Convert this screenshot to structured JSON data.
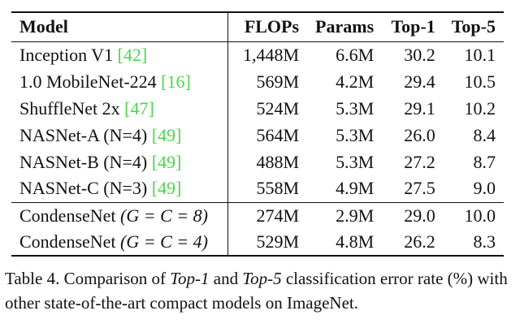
{
  "table": {
    "headers": {
      "model": "Model",
      "flops": "FLOPs",
      "params": "Params",
      "top1": "Top-1",
      "top5": "Top-5"
    },
    "rows": [
      {
        "name": "Inception V1",
        "ref": "[42]",
        "flops": "1,448M",
        "params": "6.6M",
        "top1": "30.2",
        "top5": "10.1"
      },
      {
        "name": "1.0 MobileNet-224",
        "ref": "[16]",
        "flops": "569M",
        "params": "4.2M",
        "top1": "29.4",
        "top5": "10.5"
      },
      {
        "name": "ShuffleNet 2x",
        "ref": "[47]",
        "flops": "524M",
        "params": "5.3M",
        "top1": "29.1",
        "top5": "10.2"
      },
      {
        "name": "NASNet-A (N=4)",
        "ref": "[49]",
        "flops": "564M",
        "params": "5.3M",
        "top1": "26.0",
        "top5": "8.4"
      },
      {
        "name": "NASNet-B (N=4)",
        "ref": "[49]",
        "flops": "488M",
        "params": "5.3M",
        "top1": "27.2",
        "top5": "8.7"
      },
      {
        "name": "NASNet-C (N=3)",
        "ref": "[49]",
        "flops": "558M",
        "params": "4.9M",
        "top1": "27.5",
        "top5": "9.0"
      }
    ],
    "condense_rows": [
      {
        "name": "CondenseNet",
        "math": "(G = C = 8)",
        "flops": "274M",
        "params": "2.9M",
        "top1": "29.0",
        "top5": "10.0"
      },
      {
        "name": "CondenseNet",
        "math": "(G = C = 4)",
        "flops": "529M",
        "params": "4.8M",
        "top1": "26.2",
        "top5": "8.3"
      }
    ]
  },
  "caption": {
    "prefix": "Table 4. Comparison of ",
    "top1": "Top-1",
    "mid": " and ",
    "top5": "Top-5",
    "suffix": " classification error rate (%) with other state-of-the-art compact models on ImageNet."
  },
  "colors": {
    "citation": "#4bd64b",
    "text": "#111111"
  }
}
